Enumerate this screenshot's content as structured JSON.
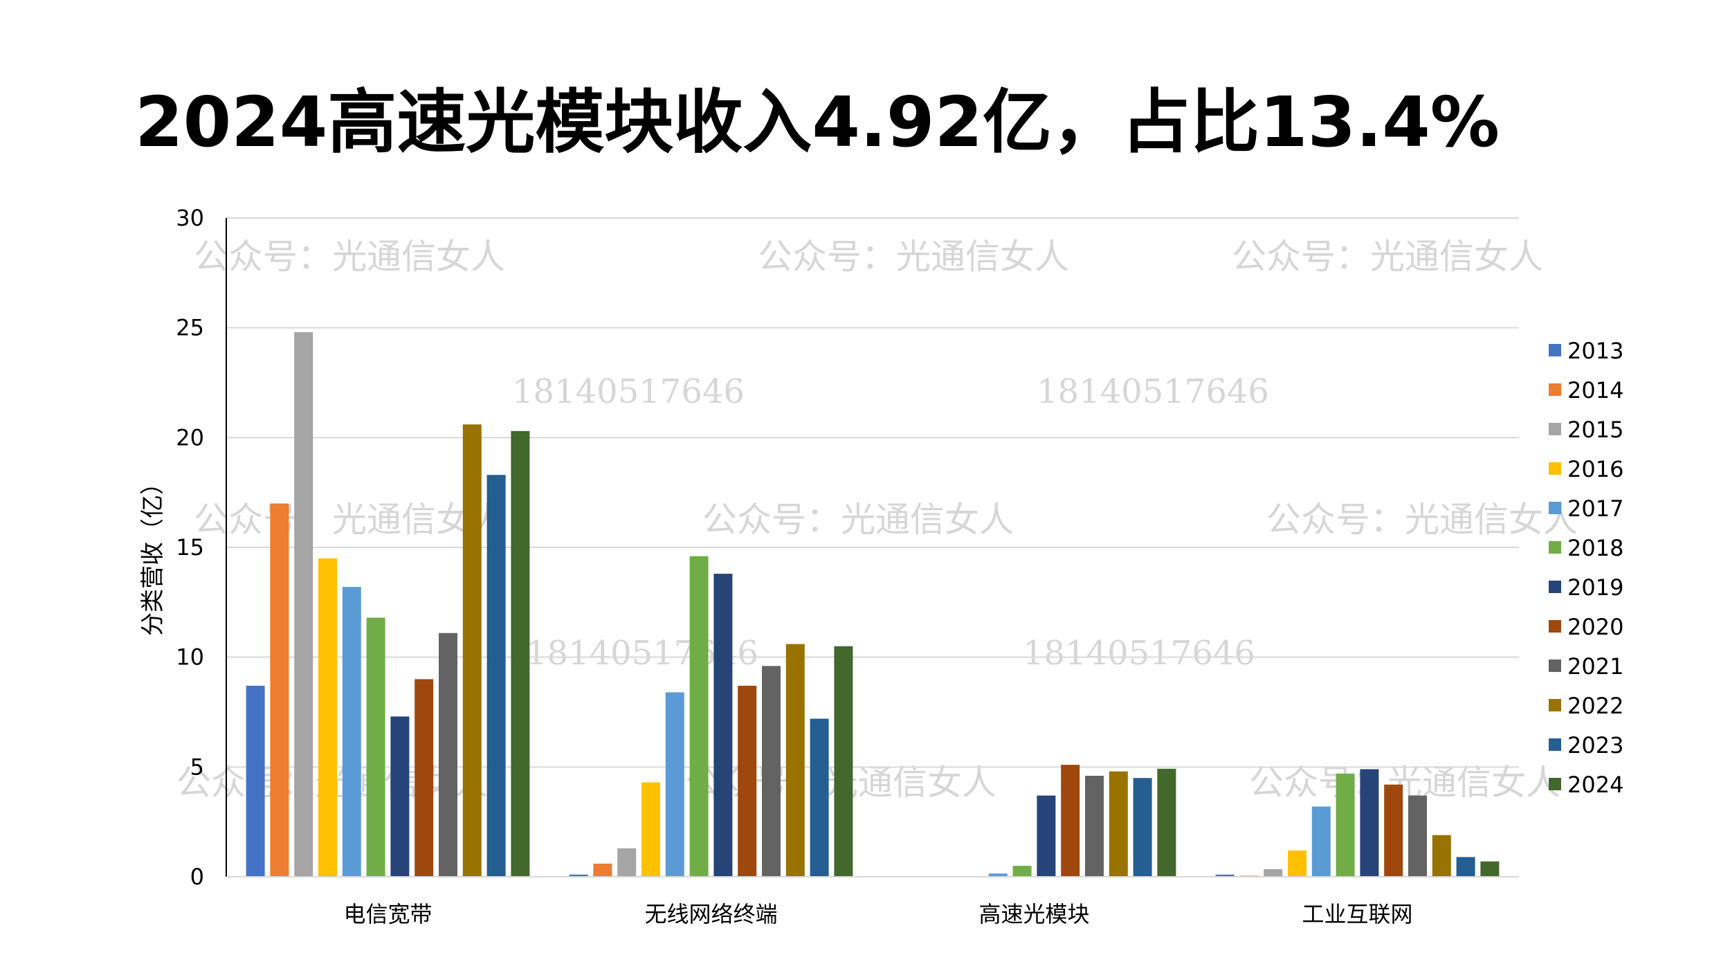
{
  "title": "2024高速光模块收入4.92亿，占比13.4%",
  "watermark": {
    "account": "公众号：光通信女人",
    "phone": "18140517646"
  },
  "chart_data": {
    "type": "bar",
    "title": "2024高速光模块收入4.92亿，占比13.4%",
    "ylabel": "分类营收（亿）",
    "xlabel": "",
    "ylim": [
      0,
      30
    ],
    "yticks": [
      0,
      5,
      10,
      15,
      20,
      25,
      30
    ],
    "grid": true,
    "legend_position": "right",
    "categories": [
      "电信宽带",
      "无线网络终端",
      "高速光模块",
      "工业互联网"
    ],
    "series": [
      {
        "name": "2013",
        "color": "#4472C4",
        "values": [
          8.7,
          0.1,
          0,
          0.1
        ]
      },
      {
        "name": "2014",
        "color": "#ED7D31",
        "values": [
          17.0,
          0.6,
          0,
          0.05
        ]
      },
      {
        "name": "2015",
        "color": "#A5A5A5",
        "values": [
          24.8,
          1.3,
          0,
          0.35
        ]
      },
      {
        "name": "2016",
        "color": "#FFC000",
        "values": [
          14.5,
          4.3,
          0,
          1.2
        ]
      },
      {
        "name": "2017",
        "color": "#5B9BD5",
        "values": [
          13.2,
          8.4,
          0.15,
          3.2
        ]
      },
      {
        "name": "2018",
        "color": "#70AD47",
        "values": [
          11.8,
          14.6,
          0.5,
          4.7
        ]
      },
      {
        "name": "2019",
        "color": "#264478",
        "values": [
          7.3,
          13.8,
          3.7,
          4.9
        ]
      },
      {
        "name": "2020",
        "color": "#9E480E",
        "values": [
          9.0,
          8.7,
          5.1,
          4.2
        ]
      },
      {
        "name": "2021",
        "color": "#636363",
        "values": [
          11.1,
          9.6,
          4.6,
          3.7
        ]
      },
      {
        "name": "2022",
        "color": "#997300",
        "values": [
          20.6,
          10.6,
          4.8,
          1.9
        ]
      },
      {
        "name": "2023",
        "color": "#255E91",
        "values": [
          18.3,
          7.2,
          4.5,
          0.9
        ]
      },
      {
        "name": "2024",
        "color": "#43682B",
        "values": [
          20.3,
          10.5,
          4.92,
          0.7
        ]
      }
    ]
  }
}
